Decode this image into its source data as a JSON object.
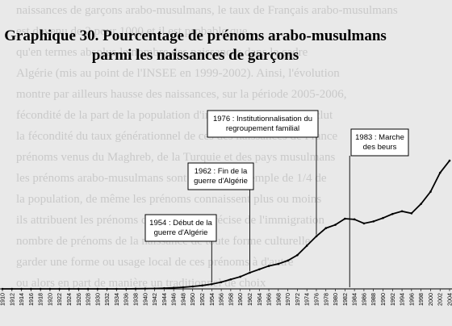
{
  "chart_data": {
    "type": "line",
    "title": "Graphique 30. Pourcentage de prénoms arabo-musulmans",
    "subtitle": "parmi les naissances de garçons",
    "x_range": [
      1910,
      2004
    ],
    "y_range": [
      0,
      11
    ],
    "x_tick_labels": [
      "1910",
      "1912",
      "1914",
      "1916",
      "1918",
      "1920",
      "1922",
      "1924",
      "1926",
      "1928",
      "1930",
      "1932",
      "1934",
      "1936",
      "1938",
      "1940",
      "1942",
      "1944",
      "1946",
      "1948",
      "1950",
      "1952",
      "1954",
      "1956",
      "1958",
      "1960",
      "1962",
      "1964",
      "1966",
      "1968",
      "1970",
      "1972",
      "1974",
      "1976",
      "1978",
      "1980",
      "1982",
      "1984",
      "1986",
      "1988",
      "1990",
      "1992",
      "1994",
      "1996",
      "1998",
      "2000",
      "2002",
      "2004"
    ],
    "series": [
      {
        "color": "#000000",
        "x": [
          1910,
          1912,
          1914,
          1916,
          1918,
          1920,
          1922,
          1924,
          1926,
          1928,
          1930,
          1932,
          1934,
          1936,
          1938,
          1940,
          1942,
          1944,
          1946,
          1948,
          1950,
          1952,
          1954,
          1956,
          1958,
          1960,
          1962,
          1964,
          1966,
          1968,
          1970,
          1972,
          1974,
          1976,
          1978,
          1980,
          1982,
          1984,
          1986,
          1988,
          1990,
          1992,
          1994,
          1996,
          1998,
          2000,
          2002,
          2004
        ],
        "y": [
          0,
          0,
          0,
          0,
          0,
          0,
          0,
          0,
          0,
          0,
          0,
          0,
          0,
          0,
          0.01,
          0.02,
          0.03,
          0.05,
          0.08,
          0.12,
          0.18,
          0.25,
          0.35,
          0.5,
          0.7,
          0.9,
          1.2,
          1.45,
          1.7,
          1.85,
          2.1,
          2.5,
          3.2,
          3.9,
          4.5,
          4.75,
          5.2,
          5.15,
          4.85,
          5.0,
          5.25,
          5.55,
          5.75,
          5.6,
          6.3,
          7.2,
          8.6,
          9.5
        ]
      }
    ],
    "annotations": [
      {
        "lines": [
          "1954 : Début de la",
          "guerre d'Algérie"
        ],
        "x": 1954
      },
      {
        "lines": [
          "1962 : Fin de la",
          "guerre d'Algérie"
        ],
        "x": 1962
      },
      {
        "lines": [
          "1976 : Institutionnalisation du",
          "regroupement familial"
        ],
        "x": 1976
      },
      {
        "lines": [
          "1983 : Marche",
          "des beurs"
        ],
        "x": 1983
      }
    ]
  },
  "background_text": [
    "naissances de garçons arabo-musulmans, le taux de Français arabo-musulmans",
    "est devenu de 2 pour 1000 et il est probable que",
    "qu'en termes absolus le nombre des naissances dans le cadre",
    "Algérie (mis au point de l'INSEE en 1999-2002). Ainsi, l'évolution",
    "montre par ailleurs hausse des naissances, sur la période 2005-2006,",
    "fécondité de la part de la population d'immigration, on en conclut",
    "la fécondité du taux générationnel de ces des naissances de France",
    "prénoms venus du Maghreb, de la Turquie et des pays musulmans",
    "les prénoms arabo-musulmans sont passés en exemple de 1/4 de",
    "la population, de même les prénoms connaissent plus ou moins",
    "ils attribuent les prénoms d'une origine précise de l'immigration",
    "nombre de prénoms de la naissance de toute forme culturelle",
    "garder une forme ou usage local de ces prénoms à d'autre",
    "ou alors en part de manière un traditionnel de choix"
  ]
}
